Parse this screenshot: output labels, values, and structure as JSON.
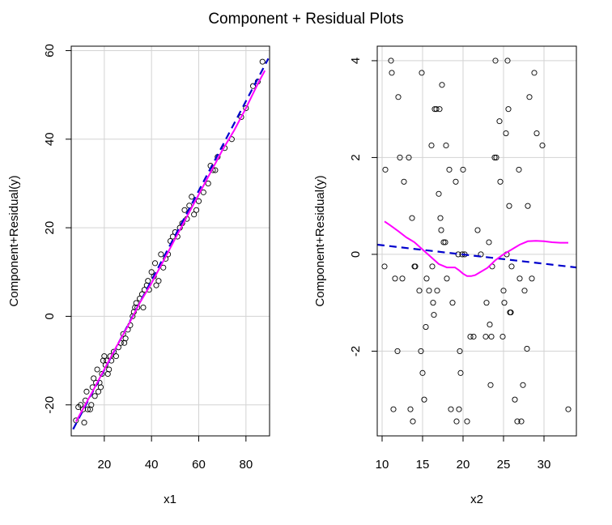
{
  "chart_data": [
    {
      "type": "scatter",
      "title": "Component + Residual Plots",
      "xlabel": "x1",
      "ylabel": "Component+Residual(y)",
      "xlim": [
        6,
        90
      ],
      "ylim": [
        -27,
        61
      ],
      "xticks": [
        20,
        40,
        60,
        80
      ],
      "yticks": [
        -20,
        0,
        20,
        40,
        60
      ],
      "grid": true,
      "points": [
        [
          8,
          -23.5
        ],
        [
          9,
          -20.5
        ],
        [
          10,
          -20
        ],
        [
          11,
          -21
        ],
        [
          11.5,
          -24
        ],
        [
          12,
          -19
        ],
        [
          12.5,
          -17
        ],
        [
          13,
          -21
        ],
        [
          14,
          -21
        ],
        [
          14.5,
          -20
        ],
        [
          15,
          -16
        ],
        [
          15.5,
          -14
        ],
        [
          16,
          -18
        ],
        [
          16.5,
          -15
        ],
        [
          17,
          -12
        ],
        [
          17.5,
          -17
        ],
        [
          18,
          -15
        ],
        [
          18.5,
          -16
        ],
        [
          19,
          -13
        ],
        [
          19.5,
          -10
        ],
        [
          20,
          -9
        ],
        [
          20.5,
          -11
        ],
        [
          21,
          -10
        ],
        [
          21.5,
          -13
        ],
        [
          22,
          -12
        ],
        [
          22.5,
          -9
        ],
        [
          23,
          -10
        ],
        [
          24,
          -8
        ],
        [
          25,
          -9
        ],
        [
          26,
          -7
        ],
        [
          27,
          -6
        ],
        [
          28,
          -4
        ],
        [
          28.5,
          -6
        ],
        [
          29,
          -5
        ],
        [
          30,
          -3
        ],
        [
          31,
          -2
        ],
        [
          32,
          0
        ],
        [
          32.5,
          1
        ],
        [
          33,
          2
        ],
        [
          33.5,
          3
        ],
        [
          34,
          2
        ],
        [
          35,
          4
        ],
        [
          36,
          5
        ],
        [
          36.5,
          2
        ],
        [
          37,
          6
        ],
        [
          38,
          7
        ],
        [
          38.5,
          8
        ],
        [
          39,
          6
        ],
        [
          40,
          10
        ],
        [
          41,
          9
        ],
        [
          41.5,
          12
        ],
        [
          42,
          7
        ],
        [
          43,
          8
        ],
        [
          44,
          14
        ],
        [
          45,
          11
        ],
        [
          46,
          13
        ],
        [
          47,
          14
        ],
        [
          48,
          17
        ],
        [
          49,
          18
        ],
        [
          50,
          19
        ],
        [
          51,
          18
        ],
        [
          52,
          20
        ],
        [
          53,
          21
        ],
        [
          54,
          24
        ],
        [
          55,
          22
        ],
        [
          56,
          25
        ],
        [
          57,
          27
        ],
        [
          58,
          23
        ],
        [
          59,
          24
        ],
        [
          60,
          26
        ],
        [
          62,
          28
        ],
        [
          64,
          30
        ],
        [
          65,
          34
        ],
        [
          66,
          33
        ],
        [
          67,
          33
        ],
        [
          68,
          36
        ],
        [
          71,
          38
        ],
        [
          74,
          40
        ],
        [
          78,
          45
        ],
        [
          80,
          47
        ],
        [
          83,
          52
        ],
        [
          85,
          53
        ],
        [
          87,
          57.5
        ]
      ],
      "series": [
        {
          "name": "",
          "style": "dashed",
          "color": "#0000cd",
          "x": [
            6.8,
            89.5
          ],
          "y": [
            -25.5,
            58.2
          ]
        },
        {
          "name": "",
          "style": "solid",
          "color": "#ff00ff",
          "x": [
            8,
            15,
            20,
            25,
            30,
            35,
            40,
            45,
            50,
            55,
            60,
            65,
            70,
            75,
            80,
            85,
            88
          ],
          "y": [
            -23.8,
            -17,
            -12,
            -7,
            -2.2,
            3,
            7.5,
            12.5,
            17.5,
            22.5,
            27.5,
            32.5,
            37.5,
            42,
            47,
            52.5,
            55.5
          ]
        }
      ]
    },
    {
      "type": "scatter",
      "title": "Component + Residual Plots",
      "xlabel": "x2",
      "ylabel": "Component+Residual(y)",
      "xlim": [
        9.4,
        34
      ],
      "ylim": [
        -3.75,
        4.3
      ],
      "xticks": [
        10,
        15,
        20,
        25,
        30
      ],
      "yticks": [
        -2,
        0,
        2,
        4
      ],
      "grid": true,
      "points": [
        [
          10.3,
          -0.25
        ],
        [
          10.4,
          1.75
        ],
        [
          11.1,
          4.0
        ],
        [
          11.2,
          3.75
        ],
        [
          11.4,
          -3.2
        ],
        [
          11.6,
          -0.5
        ],
        [
          11.9,
          -2.0
        ],
        [
          12.0,
          3.25
        ],
        [
          12.2,
          2.0
        ],
        [
          12.5,
          -0.5
        ],
        [
          12.7,
          1.5
        ],
        [
          13.3,
          2.0
        ],
        [
          13.5,
          -3.2
        ],
        [
          13.7,
          0.75
        ],
        [
          13.8,
          -3.45
        ],
        [
          14.0,
          -0.25
        ],
        [
          14.1,
          -0.25
        ],
        [
          14.6,
          -0.75
        ],
        [
          14.8,
          -2.0
        ],
        [
          14.9,
          3.75
        ],
        [
          15.0,
          -2.45
        ],
        [
          15.2,
          -3.0
        ],
        [
          15.4,
          -1.5
        ],
        [
          15.5,
          -0.5
        ],
        [
          15.8,
          -0.75
        ],
        [
          16.1,
          2.25
        ],
        [
          16.2,
          -0.25
        ],
        [
          16.3,
          -1.0
        ],
        [
          16.4,
          -1.25
        ],
        [
          16.5,
          3.0
        ],
        [
          16.7,
          3.0
        ],
        [
          16.8,
          -0.75
        ],
        [
          17.0,
          1.25
        ],
        [
          17.1,
          3.0
        ],
        [
          17.2,
          0.75
        ],
        [
          17.3,
          0.5
        ],
        [
          17.4,
          3.5
        ],
        [
          17.6,
          0.25
        ],
        [
          17.8,
          0.25
        ],
        [
          17.9,
          2.25
        ],
        [
          18.0,
          -0.5
        ],
        [
          18.3,
          1.75
        ],
        [
          18.5,
          -3.2
        ],
        [
          18.7,
          -1.0
        ],
        [
          19.1,
          1.5
        ],
        [
          19.2,
          -3.45
        ],
        [
          19.4,
          0.0
        ],
        [
          19.5,
          -3.2
        ],
        [
          19.6,
          -2.0
        ],
        [
          19.7,
          -2.45
        ],
        [
          19.9,
          0.0
        ],
        [
          20.0,
          1.75
        ],
        [
          20.2,
          0.0
        ],
        [
          20.5,
          -3.45
        ],
        [
          20.9,
          -1.7
        ],
        [
          21.3,
          -1.7
        ],
        [
          21.8,
          0.5
        ],
        [
          22.2,
          0.0
        ],
        [
          22.8,
          -1.7
        ],
        [
          22.9,
          -1.0
        ],
        [
          23.2,
          0.25
        ],
        [
          23.3,
          -1.45
        ],
        [
          23.4,
          -2.7
        ],
        [
          23.5,
          -1.7
        ],
        [
          23.6,
          -0.25
        ],
        [
          23.9,
          2.0
        ],
        [
          24.0,
          4.0
        ],
        [
          24.1,
          2.0
        ],
        [
          24.5,
          2.75
        ],
        [
          24.6,
          1.5
        ],
        [
          24.9,
          -1.7
        ],
        [
          25.0,
          -0.75
        ],
        [
          25.1,
          -1.0
        ],
        [
          25.3,
          2.5
        ],
        [
          25.4,
          0.0
        ],
        [
          25.5,
          4.0
        ],
        [
          25.6,
          3.0
        ],
        [
          25.7,
          1.0
        ],
        [
          25.8,
          -1.2
        ],
        [
          25.9,
          -1.2
        ],
        [
          26.0,
          -0.25
        ],
        [
          26.4,
          -3.0
        ],
        [
          26.7,
          -3.45
        ],
        [
          26.9,
          1.75
        ],
        [
          27.0,
          -0.5
        ],
        [
          27.2,
          -3.45
        ],
        [
          27.4,
          -2.7
        ],
        [
          27.6,
          -0.75
        ],
        [
          27.9,
          -1.95
        ],
        [
          28.0,
          1.0
        ],
        [
          28.2,
          3.25
        ],
        [
          28.5,
          -0.5
        ],
        [
          28.8,
          3.75
        ],
        [
          29.1,
          2.5
        ],
        [
          29.8,
          2.25
        ],
        [
          33.0,
          -3.2
        ]
      ],
      "series": [
        {
          "name": "",
          "style": "dashed",
          "color": "#0000cd",
          "x": [
            9.4,
            34
          ],
          "y": [
            0.2,
            -0.27
          ]
        },
        {
          "name": "",
          "style": "solid",
          "color": "#ff00ff",
          "x": [
            10.3,
            11,
            12,
            13,
            14,
            15,
            16,
            17,
            18,
            19,
            19.5,
            20,
            20.5,
            21,
            21.5,
            22,
            23,
            24,
            25,
            26,
            27,
            28,
            29,
            30,
            31,
            32,
            33
          ],
          "y": [
            0.68,
            0.6,
            0.48,
            0.35,
            0.25,
            0.1,
            -0.05,
            -0.2,
            -0.27,
            -0.27,
            -0.33,
            -0.4,
            -0.45,
            -0.45,
            -0.43,
            -0.38,
            -0.28,
            -0.12,
            0.0,
            0.1,
            0.2,
            0.27,
            0.28,
            0.27,
            0.25,
            0.24,
            0.24
          ]
        }
      ]
    }
  ]
}
